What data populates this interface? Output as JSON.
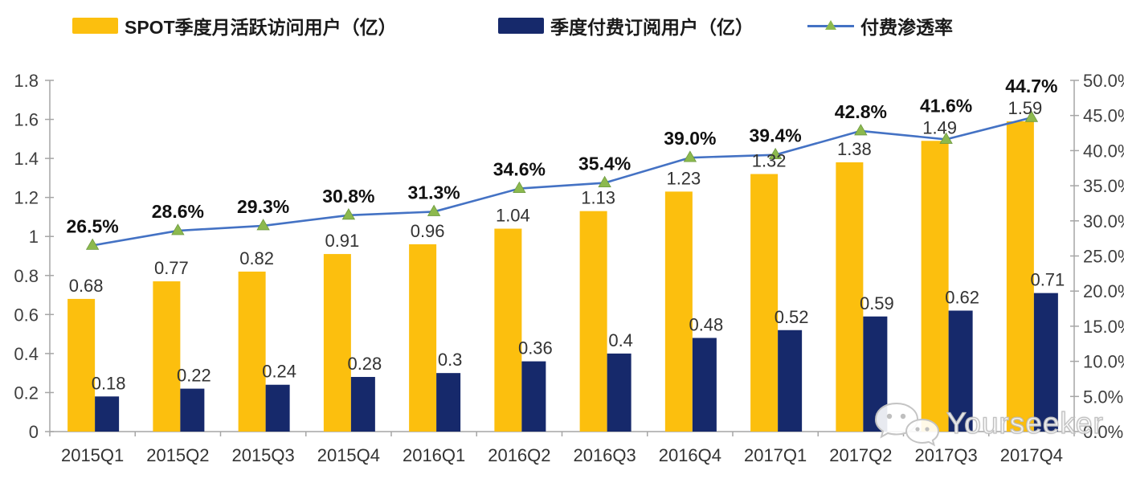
{
  "watermark": {
    "text": "Yourseeker",
    "icon": "wechat-icon"
  },
  "chart_data": {
    "type": "combo-bar-line",
    "title": "",
    "legend_position": "top",
    "grid": false,
    "categories": [
      "2015Q1",
      "2015Q2",
      "2015Q3",
      "2015Q4",
      "2016Q1",
      "2016Q2",
      "2016Q3",
      "2016Q4",
      "2017Q1",
      "2017Q2",
      "2017Q3",
      "2017Q4"
    ],
    "series": [
      {
        "name": "SPOT季度月活跃访问用户（亿）",
        "type": "bar",
        "axis": "left",
        "color": "#FCBF0E",
        "values": [
          0.68,
          0.77,
          0.82,
          0.91,
          0.96,
          1.04,
          1.13,
          1.23,
          1.32,
          1.38,
          1.49,
          1.59
        ],
        "labels": [
          "0.68",
          "0.77",
          "0.82",
          "0.91",
          "0.96",
          "1.04",
          "1.13",
          "1.23",
          "1.32",
          "1.38",
          "1.49",
          "1.59"
        ]
      },
      {
        "name": "季度付费订阅用户（亿）",
        "type": "bar",
        "axis": "left",
        "color": "#16296B",
        "values": [
          0.18,
          0.22,
          0.24,
          0.28,
          0.3,
          0.36,
          0.4,
          0.48,
          0.52,
          0.59,
          0.62,
          0.71
        ],
        "labels": [
          "0.18",
          "0.22",
          "0.24",
          "0.28",
          "0.3",
          "0.36",
          "0.4",
          "0.48",
          "0.52",
          "0.59",
          "0.62",
          "0.71"
        ]
      },
      {
        "name": "付费渗透率",
        "type": "line",
        "axis": "right",
        "color": "#4472C4",
        "marker": "triangle-up",
        "marker_color": "#8CB94E",
        "values": [
          26.5,
          28.6,
          29.3,
          30.8,
          31.3,
          34.6,
          35.4,
          39.0,
          39.4,
          42.8,
          41.6,
          44.7
        ],
        "labels": [
          "26.5%",
          "28.6%",
          "29.3%",
          "30.8%",
          "31.3%",
          "34.6%",
          "35.4%",
          "39.0%",
          "39.4%",
          "42.8%",
          "41.6%",
          "44.7%"
        ]
      }
    ],
    "left_axis": {
      "min": 0,
      "max": 1.8,
      "ticks": [
        "0",
        "0.2",
        "0.4",
        "0.6",
        "0.8",
        "1",
        "1.2",
        "1.4",
        "1.6",
        "1.8"
      ]
    },
    "right_axis": {
      "min": 0,
      "max": 50,
      "ticks": [
        "0.0%",
        "5.0%",
        "10.0%",
        "15.0%",
        "20.0%",
        "25.0%",
        "30.0%",
        "35.0%",
        "40.0%",
        "45.0%",
        "50.0%"
      ]
    },
    "axis_color": "#a6a6a6",
    "tick_label_color": "#3f3f3f",
    "bar_label_color": "#333333",
    "pct_label_color": "#111111"
  }
}
